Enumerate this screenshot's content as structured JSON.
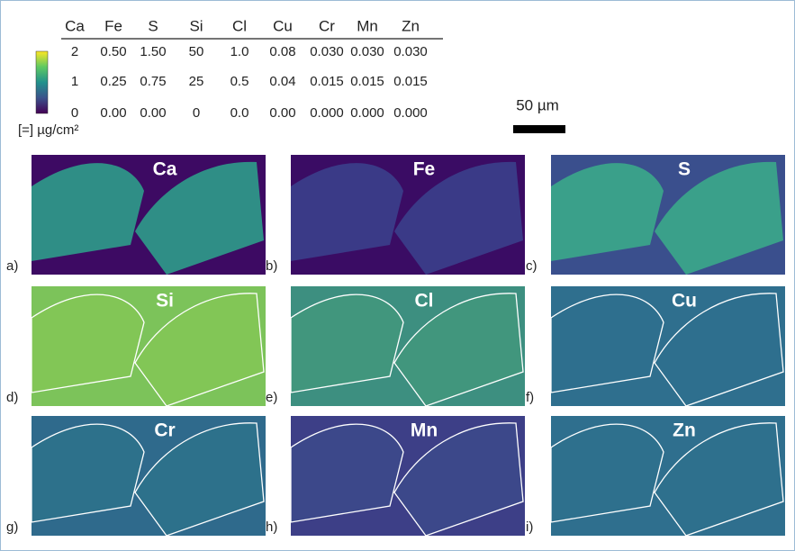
{
  "legend_table": {
    "headers": [
      "Ca",
      "Fe",
      "S",
      "Si",
      "Cl",
      "Cu",
      "Cr",
      "Mn",
      "Zn"
    ],
    "rows": [
      [
        "2",
        "0.50",
        "1.50",
        "50",
        "1.0",
        "0.08",
        "0.030",
        "0.030",
        "0.030"
      ],
      [
        "1",
        "0.25",
        "0.75",
        "25",
        "0.5",
        "0.04",
        "0.015",
        "0.015",
        "0.015"
      ],
      [
        "0",
        "0.00",
        "0.00",
        "0",
        "0.0",
        "0.00",
        "0.000",
        "0.000",
        "0.000"
      ]
    ]
  },
  "unit_label": "[=] µg/cm²",
  "scale_bar": "50 µm",
  "panels": [
    {
      "label": "a)",
      "element": "Ca"
    },
    {
      "label": "b)",
      "element": "Fe"
    },
    {
      "label": "c)",
      "element": "S"
    },
    {
      "label": "d)",
      "element": "Si"
    },
    {
      "label": "e)",
      "element": "Cl"
    },
    {
      "label": "f)",
      "element": "Cu"
    },
    {
      "label": "g)",
      "element": "Cr"
    },
    {
      "label": "h)",
      "element": "Mn"
    },
    {
      "label": "i)",
      "element": "Zn"
    }
  ]
}
